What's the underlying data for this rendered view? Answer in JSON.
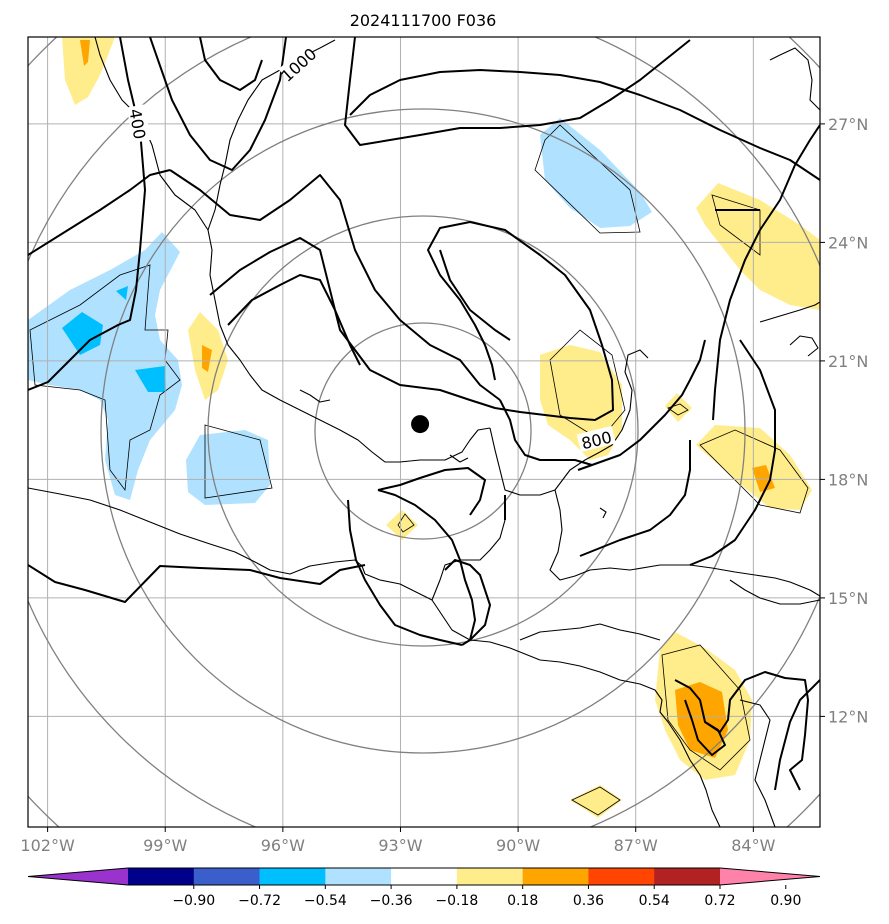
{
  "title": "2024111700 F036",
  "map": {
    "lon_range": [
      -102.5,
      -82.3
    ],
    "lat_range": [
      9.2,
      29.2
    ],
    "lon_ticks": [
      {
        "value": -102,
        "label": "102°W"
      },
      {
        "value": -99,
        "label": "99°W"
      },
      {
        "value": -96,
        "label": "96°W"
      },
      {
        "value": -93,
        "label": "93°W"
      },
      {
        "value": -90,
        "label": "90°W"
      },
      {
        "value": -87,
        "label": "87°W"
      },
      {
        "value": -84,
        "label": "84°W"
      }
    ],
    "lat_ticks": [
      {
        "value": 27,
        "label": "27°N"
      },
      {
        "value": 24,
        "label": "24°N"
      },
      {
        "value": 21,
        "label": "21°N"
      },
      {
        "value": 18,
        "label": "18°N"
      },
      {
        "value": 15,
        "label": "15°N"
      },
      {
        "value": 12,
        "label": "12°N"
      }
    ],
    "grid": true,
    "center_marker": {
      "lon": -92.5,
      "lat": 19.4
    },
    "contour_labels": [
      {
        "text": "1000",
        "lon": -95.6,
        "lat": 28.5,
        "rotate": -42
      },
      {
        "text": "400",
        "lon": -99.7,
        "lat": 27.0,
        "rotate": 80
      },
      {
        "text": "800",
        "lon": -88.0,
        "lat": 19.0,
        "rotate": -14
      }
    ]
  },
  "colorbar": {
    "colors": [
      "#9a32cd",
      "#00008b",
      "#3a5fcd",
      "#00bfff",
      "#b0e2ff",
      "#ffffff",
      "#ffec8b",
      "#ffa500",
      "#ff4500",
      "#b22222",
      "#ff82ab"
    ],
    "labels": [
      "−0.90",
      "−0.72",
      "−0.54",
      "−0.36",
      "−0.18",
      "0.18",
      "0.36",
      "0.54",
      "0.72",
      "0.90"
    ]
  },
  "legend_colors": {
    "grid": "#b0b0b0",
    "range_rings": "#808080",
    "tick_label": "#808080"
  }
}
